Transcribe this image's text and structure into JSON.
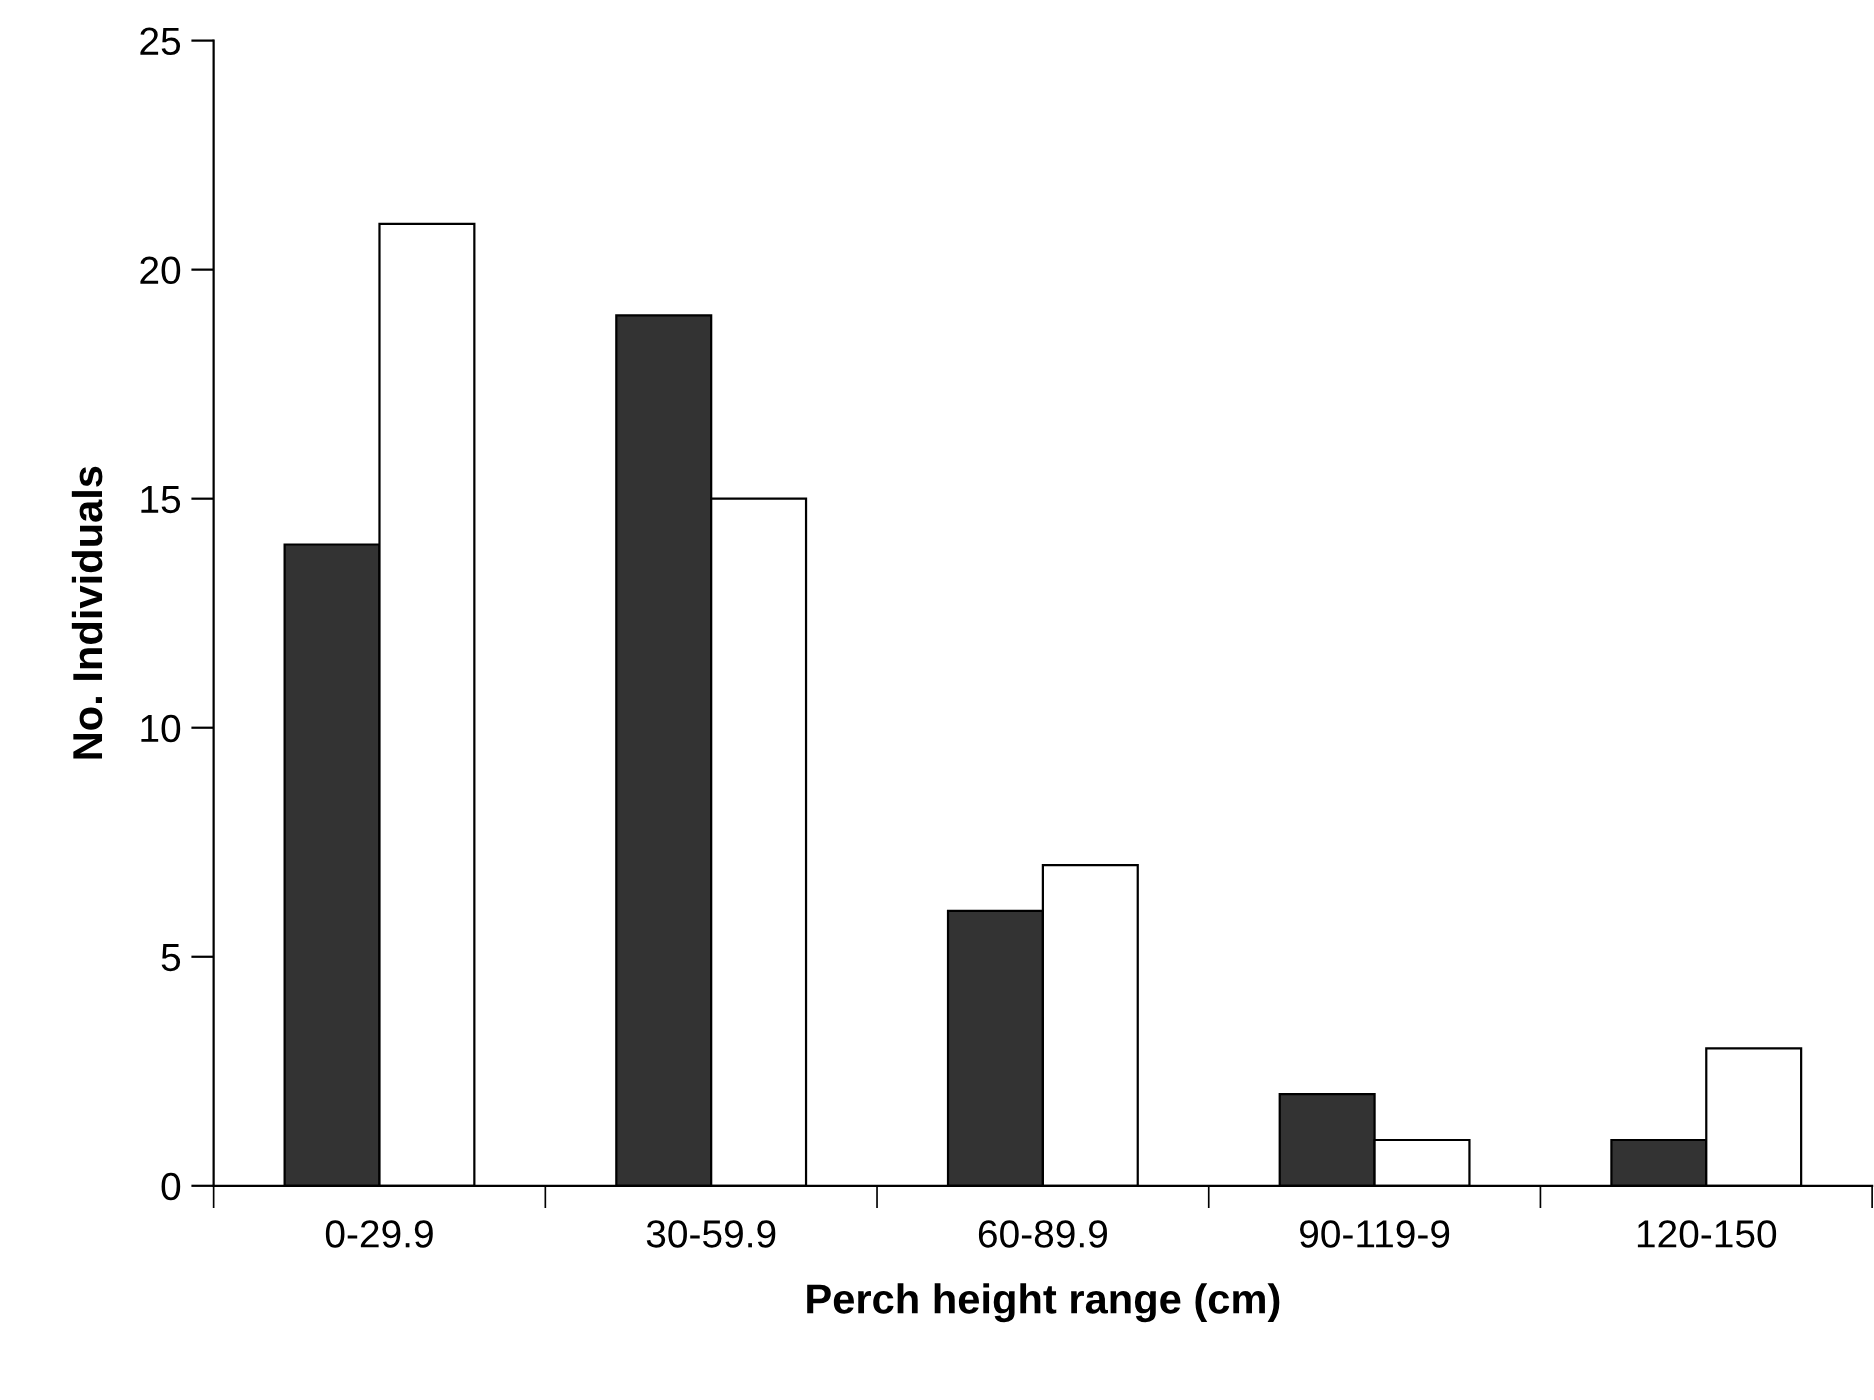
{
  "chart_data": {
    "type": "bar",
    "xlabel": "Perch height range (cm)",
    "ylabel": "No. Individuals",
    "categories": [
      "0-29.9",
      "30-59.9",
      "60-89.9",
      "90-119-9",
      "120-150"
    ],
    "series": [
      {
        "color": "#333333",
        "values": [
          14,
          19,
          6,
          2,
          1
        ]
      },
      {
        "color": "#ffffff",
        "values": [
          21,
          15,
          7,
          1,
          3
        ]
      }
    ],
    "ylim": [
      0,
      25
    ],
    "yticks": [
      0,
      5,
      10,
      15,
      20,
      25
    ],
    "grid": false,
    "legend": false
  }
}
